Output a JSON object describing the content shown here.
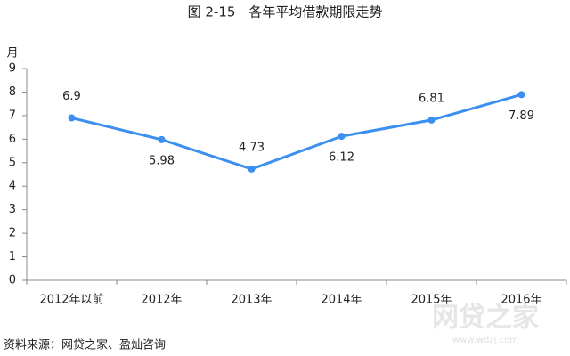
{
  "chart_data": {
    "type": "line",
    "title": "图 2-15　各年平均借款期限走势",
    "y_label": "月",
    "categories": [
      "2012年以前",
      "2012年",
      "2013年",
      "2014年",
      "2015年",
      "2016年"
    ],
    "values": [
      6.9,
      5.98,
      4.73,
      6.12,
      6.81,
      7.89
    ],
    "color": "#3b8ff0",
    "ylim": [
      0,
      9
    ],
    "yticks": [
      0,
      1,
      2,
      3,
      4,
      5,
      6,
      7,
      8,
      9
    ],
    "source": "资料来源：网贷之家、盈灿咨询",
    "watermark": "网贷之家",
    "watermark_url": "www.wdzj.com"
  }
}
